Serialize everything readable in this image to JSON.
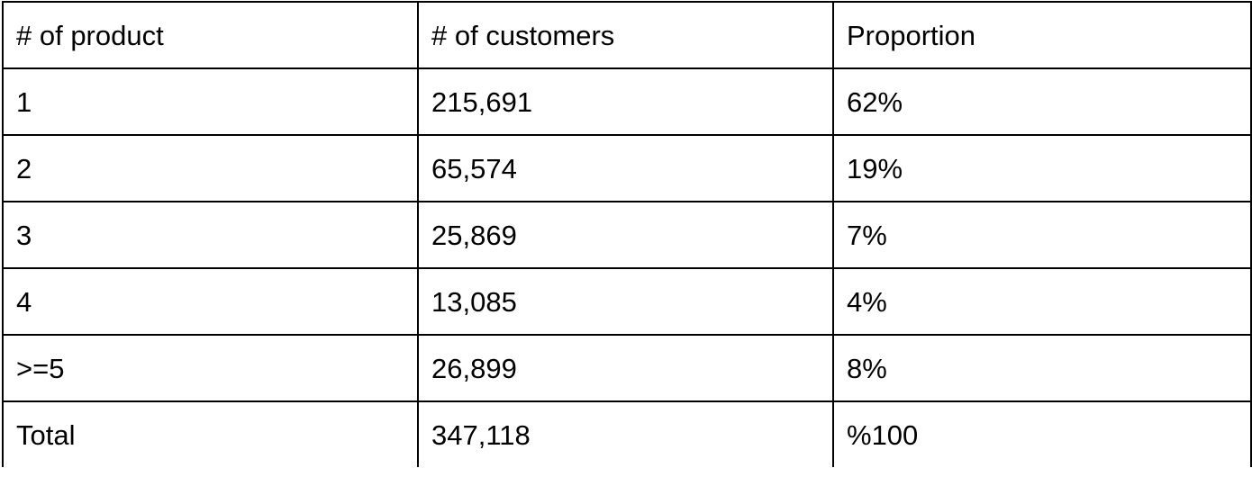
{
  "table": {
    "headers": [
      "# of product",
      "# of customers",
      "Proportion"
    ],
    "rows": [
      [
        "1",
        "215,691",
        "62%"
      ],
      [
        "2",
        "65,574",
        "19%"
      ],
      [
        "3",
        "25,869",
        "7%"
      ],
      [
        "4",
        "13,085",
        "4%"
      ],
      [
        ">=5",
        "26,899",
        "8%"
      ],
      [
        "Total",
        "347,118",
        "%100"
      ]
    ]
  }
}
